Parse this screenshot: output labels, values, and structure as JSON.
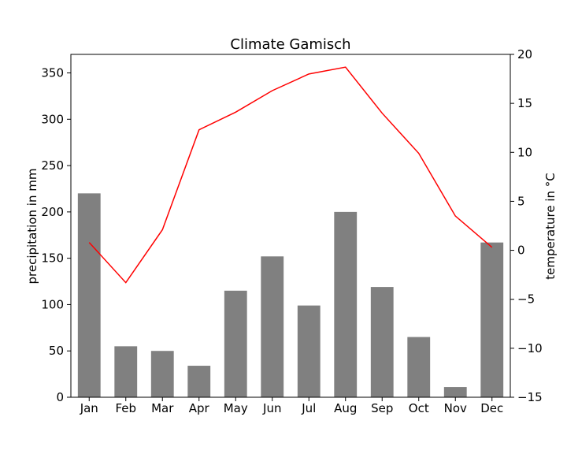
{
  "chart_data": {
    "type": "bar",
    "title": "Climate Gamisch",
    "categories": [
      "Jan",
      "Feb",
      "Mar",
      "Apr",
      "May",
      "Jun",
      "Jul",
      "Aug",
      "Sep",
      "Oct",
      "Nov",
      "Dec"
    ],
    "series": [
      {
        "type": "bar",
        "axis": "left",
        "color": "#808080",
        "values": [
          220,
          55,
          50,
          34,
          115,
          152,
          99,
          200,
          119,
          65,
          11,
          167
        ]
      },
      {
        "type": "line",
        "axis": "right",
        "color": "#ff0000",
        "values": [
          0.8,
          -3.3,
          2.1,
          12.3,
          14.1,
          16.3,
          18.0,
          18.7,
          14.0,
          9.9,
          3.5,
          0.3
        ]
      }
    ],
    "ylabel": "precipitation in mm",
    "ylim": [
      0,
      370
    ],
    "yticks": [
      0,
      50,
      100,
      150,
      200,
      250,
      300,
      350
    ],
    "y2label": "temperature in °C",
    "y2lim": [
      -15,
      20
    ],
    "y2ticks": [
      -15,
      -10,
      -5,
      0,
      5,
      10,
      15,
      20
    ],
    "grid": false,
    "legend": "none"
  }
}
